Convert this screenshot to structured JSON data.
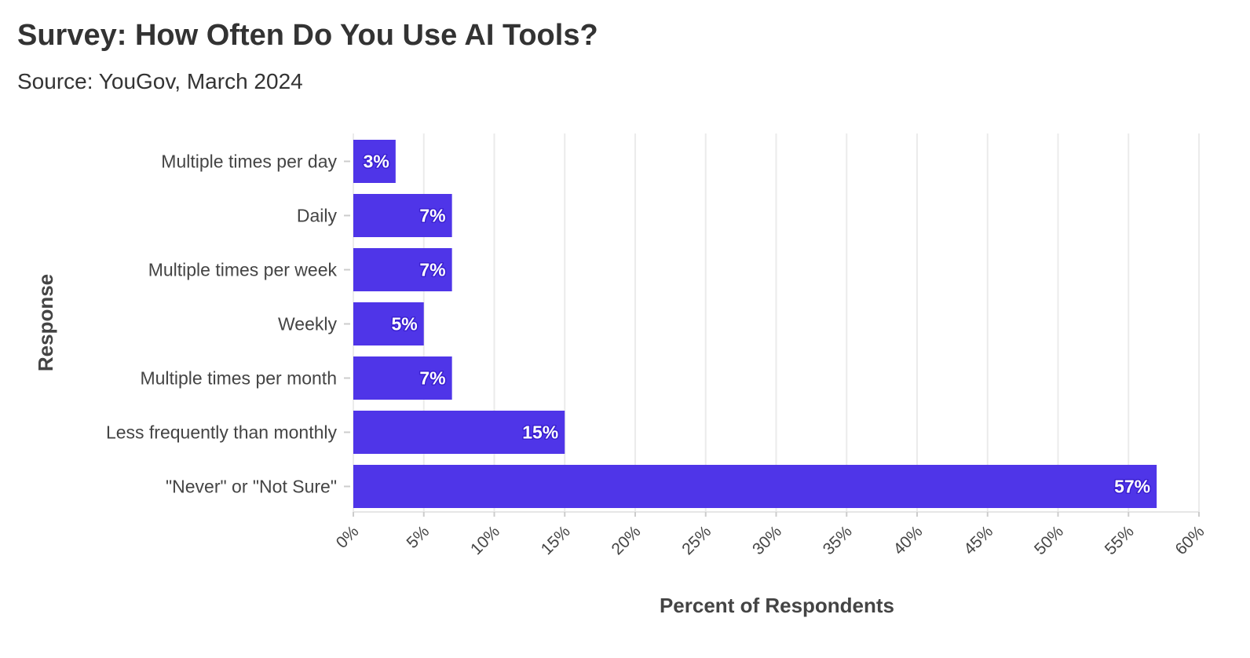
{
  "chart_data": {
    "type": "bar",
    "orientation": "horizontal",
    "title": "Survey: How Often Do You Use AI Tools?",
    "subtitle": "Source: YouGov, March 2024",
    "xlabel": "Percent of Respondents",
    "ylabel": "Response",
    "categories": [
      "Multiple times per day",
      "Daily",
      "Multiple times per week",
      "Weekly",
      "Multiple times per month",
      "Less frequently than monthly",
      "\"Never\" or \"Not Sure\""
    ],
    "values": [
      3,
      7,
      7,
      5,
      7,
      15,
      57
    ],
    "data_labels": [
      "3%",
      "7%",
      "7%",
      "5%",
      "7%",
      "15%",
      "57%"
    ],
    "xlim": [
      0,
      60
    ],
    "x_ticks": [
      0,
      5,
      10,
      15,
      20,
      25,
      30,
      35,
      40,
      45,
      50,
      55,
      60
    ],
    "x_tick_labels": [
      "0%",
      "5%",
      "10%",
      "15%",
      "20%",
      "25%",
      "30%",
      "35%",
      "40%",
      "45%",
      "50%",
      "55%",
      "60%"
    ],
    "bar_color": "#4f35e8",
    "label_outline_color": "#3a1fd0",
    "grid": "vertical",
    "legend": "none"
  }
}
